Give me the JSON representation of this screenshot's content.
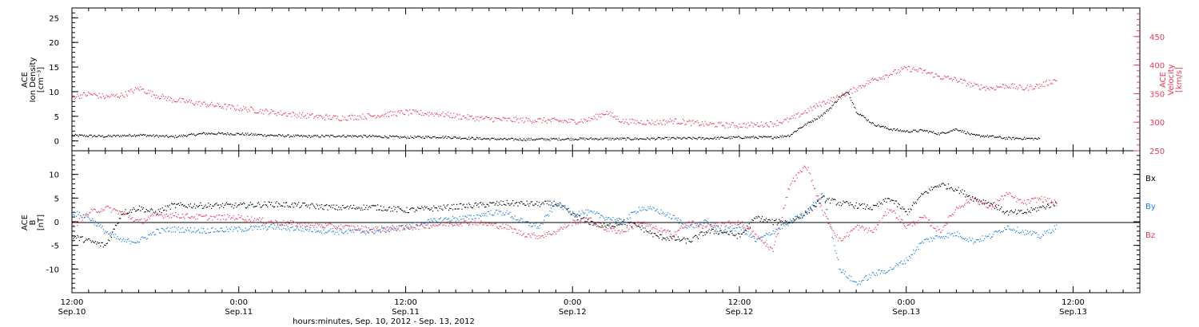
{
  "colors": {
    "black": "#000000",
    "red": "#e8385a",
    "blue": "#1f7fe0"
  },
  "chart_data": [
    {
      "type": "scatter",
      "panel": "top",
      "y_left_label": [
        "ACE",
        "Ion Density",
        "[cm⁻³]"
      ],
      "y_right_label": [
        "ACE",
        "Velocity",
        "[km/s]"
      ],
      "ylim_left": [
        -2,
        27
      ],
      "yticks_left": [
        "0",
        "5",
        "10",
        "15",
        "20",
        "25"
      ],
      "ylim_right": [
        250,
        500
      ],
      "yticks_right": [
        "250",
        "300",
        "350",
        "400",
        "450"
      ],
      "series": [
        {
          "color": "black",
          "points": [
            [
              0,
              1.2
            ],
            [
              4,
              1.0
            ],
            [
              8,
              1.3
            ],
            [
              12,
              0.9
            ],
            [
              16,
              1.6
            ],
            [
              20,
              1.5
            ],
            [
              24,
              1.2
            ],
            [
              28,
              1.0
            ],
            [
              32,
              1.1
            ],
            [
              36,
              1.0
            ],
            [
              40,
              0.8
            ],
            [
              44,
              0.9
            ],
            [
              48,
              0.6
            ],
            [
              52,
              0.4
            ],
            [
              56,
              0.4
            ],
            [
              60,
              0.5
            ],
            [
              64,
              0.5
            ],
            [
              68,
              0.5
            ],
            [
              72,
              0.6
            ],
            [
              76,
              0.6
            ],
            [
              80,
              0.8
            ],
            [
              84,
              0.8
            ],
            [
              86,
              1.2
            ],
            [
              87,
              2.5
            ],
            [
              88,
              3.5
            ],
            [
              89,
              4.5
            ],
            [
              90,
              5.5
            ],
            [
              91,
              7.0
            ],
            [
              92,
              9.0
            ],
            [
              93,
              10.0
            ],
            [
              94,
              6.0
            ],
            [
              96,
              3.5
            ],
            [
              98,
              2.5
            ],
            [
              100,
              2.0
            ],
            [
              102,
              2.2
            ],
            [
              104,
              1.5
            ],
            [
              106,
              2.5
            ],
            [
              108,
              1.2
            ],
            [
              110,
              1.0
            ],
            [
              112,
              0.6
            ],
            [
              114,
              0.6
            ],
            [
              116,
              0.5
            ]
          ]
        },
        {
          "color": "red",
          "points": [
            [
              0,
              345
            ],
            [
              2,
              350
            ],
            [
              4,
              345
            ],
            [
              6,
              348
            ],
            [
              8,
              360
            ],
            [
              10,
              348
            ],
            [
              12,
              340
            ],
            [
              16,
              332
            ],
            [
              20,
              325
            ],
            [
              24,
              318
            ],
            [
              28,
              312
            ],
            [
              32,
              308
            ],
            [
              36,
              312
            ],
            [
              40,
              318
            ],
            [
              44,
              315
            ],
            [
              48,
              308
            ],
            [
              52,
              305
            ],
            [
              56,
              304
            ],
            [
              60,
              302
            ],
            [
              62,
              305
            ],
            [
              64,
              318
            ],
            [
              66,
              302
            ],
            [
              70,
              300
            ],
            [
              72,
              303
            ],
            [
              76,
              297
            ],
            [
              80,
              295
            ],
            [
              84,
              298
            ],
            [
              86,
              305
            ],
            [
              88,
              320
            ],
            [
              90,
              335
            ],
            [
              92,
              345
            ],
            [
              94,
              360
            ],
            [
              96,
              375
            ],
            [
              98,
              385
            ],
            [
              100,
              395
            ],
            [
              102,
              390
            ],
            [
              104,
              380
            ],
            [
              106,
              375
            ],
            [
              108,
              365
            ],
            [
              110,
              360
            ],
            [
              112,
              365
            ],
            [
              114,
              360
            ],
            [
              116,
              365
            ],
            [
              118,
              375
            ]
          ]
        }
      ]
    },
    {
      "type": "scatter",
      "panel": "bottom",
      "y_left_label": [
        "ACE",
        "B",
        "[nT]"
      ],
      "ylim": [
        -15,
        15
      ],
      "yticks": [
        "-10",
        "-5",
        "0",
        "5",
        "10"
      ],
      "legend": [
        "Bx",
        "By",
        "Bz"
      ],
      "series": [
        {
          "name": "Bx",
          "color": "black",
          "points": [
            [
              0,
              -3
            ],
            [
              2,
              -4
            ],
            [
              4,
              -5
            ],
            [
              6,
              2
            ],
            [
              8,
              3
            ],
            [
              10,
              2
            ],
            [
              12,
              3.5
            ],
            [
              16,
              3.5
            ],
            [
              20,
              3.5
            ],
            [
              24,
              3.8
            ],
            [
              28,
              3.5
            ],
            [
              32,
              3
            ],
            [
              36,
              3.2
            ],
            [
              40,
              2.5
            ],
            [
              44,
              3
            ],
            [
              48,
              3.5
            ],
            [
              52,
              4
            ],
            [
              56,
              3.8
            ],
            [
              58,
              4
            ],
            [
              60,
              1.5
            ],
            [
              62,
              0
            ],
            [
              64,
              -1
            ],
            [
              66,
              0
            ],
            [
              68,
              -1
            ],
            [
              70,
              -3
            ],
            [
              72,
              -3.5
            ],
            [
              74,
              -4
            ],
            [
              76,
              -2
            ],
            [
              78,
              -2
            ],
            [
              80,
              -3
            ],
            [
              82,
              1
            ],
            [
              84,
              0
            ],
            [
              86,
              0
            ],
            [
              88,
              2
            ],
            [
              90,
              5
            ],
            [
              92,
              4
            ],
            [
              96,
              3
            ],
            [
              98,
              5
            ],
            [
              100,
              2
            ],
            [
              102,
              6
            ],
            [
              104,
              8
            ],
            [
              106,
              7
            ],
            [
              108,
              5
            ],
            [
              110,
              4
            ],
            [
              112,
              2
            ],
            [
              114,
              2
            ],
            [
              116,
              3
            ],
            [
              118,
              4
            ]
          ]
        },
        {
          "name": "By",
          "color": "blue",
          "points": [
            [
              0,
              2
            ],
            [
              2,
              1
            ],
            [
              4,
              -2
            ],
            [
              6,
              -4
            ],
            [
              8,
              -4
            ],
            [
              10,
              -2
            ],
            [
              12,
              -1.5
            ],
            [
              16,
              -1.8
            ],
            [
              20,
              -1.5
            ],
            [
              24,
              -1
            ],
            [
              28,
              -1.5
            ],
            [
              32,
              -2
            ],
            [
              36,
              -2
            ],
            [
              40,
              -1
            ],
            [
              44,
              0.5
            ],
            [
              48,
              1
            ],
            [
              50,
              2
            ],
            [
              52,
              2
            ],
            [
              54,
              0
            ],
            [
              56,
              -1
            ],
            [
              58,
              4
            ],
            [
              60,
              2
            ],
            [
              62,
              2
            ],
            [
              64,
              1
            ],
            [
              66,
              0
            ],
            [
              68,
              3
            ],
            [
              70,
              2.5
            ],
            [
              72,
              1
            ],
            [
              74,
              -1
            ],
            [
              76,
              0
            ],
            [
              78,
              -2
            ],
            [
              80,
              -1
            ],
            [
              82,
              -4
            ],
            [
              84,
              -2
            ],
            [
              86,
              0
            ],
            [
              88,
              2
            ],
            [
              90,
              6
            ],
            [
              92,
              -10
            ],
            [
              94,
              -13
            ],
            [
              96,
              -11
            ],
            [
              98,
              -10
            ],
            [
              100,
              -8
            ],
            [
              102,
              -4
            ],
            [
              104,
              -3
            ],
            [
              106,
              -2.5
            ],
            [
              108,
              -4
            ],
            [
              110,
              -3
            ],
            [
              112,
              -1
            ],
            [
              114,
              -2
            ],
            [
              116,
              -3
            ],
            [
              118,
              -1
            ]
          ]
        },
        {
          "name": "Bz",
          "color": "red",
          "points": [
            [
              0,
              -1
            ],
            [
              2,
              2
            ],
            [
              4,
              3
            ],
            [
              6,
              2
            ],
            [
              8,
              0
            ],
            [
              10,
              1.5
            ],
            [
              12,
              1.5
            ],
            [
              16,
              1
            ],
            [
              20,
              1
            ],
            [
              24,
              0
            ],
            [
              28,
              -0.5
            ],
            [
              32,
              -1
            ],
            [
              36,
              -1.5
            ],
            [
              40,
              -1.2
            ],
            [
              44,
              -0.5
            ],
            [
              48,
              0
            ],
            [
              52,
              -1
            ],
            [
              54,
              -2.5
            ],
            [
              56,
              -3
            ],
            [
              58,
              -2
            ],
            [
              60,
              0
            ],
            [
              62,
              0.5
            ],
            [
              64,
              -1.5
            ],
            [
              66,
              -2
            ],
            [
              68,
              0
            ],
            [
              70,
              -1.5
            ],
            [
              72,
              -2.5
            ],
            [
              74,
              0
            ],
            [
              76,
              -1
            ],
            [
              78,
              -0.5
            ],
            [
              80,
              0
            ],
            [
              82,
              -3
            ],
            [
              84,
              -6
            ],
            [
              86,
              8
            ],
            [
              88,
              12
            ],
            [
              90,
              2
            ],
            [
              92,
              -4
            ],
            [
              94,
              -1
            ],
            [
              96,
              -2
            ],
            [
              98,
              3
            ],
            [
              100,
              -1
            ],
            [
              102,
              1
            ],
            [
              104,
              -2
            ],
            [
              106,
              3
            ],
            [
              108,
              5
            ],
            [
              110,
              3
            ],
            [
              112,
              6
            ],
            [
              114,
              4
            ],
            [
              116,
              5
            ],
            [
              118,
              4
            ]
          ]
        }
      ]
    }
  ],
  "x_axis": {
    "title": "hours:minutes, Sep. 10, 2012 - Sep. 13, 2012",
    "xlim_hours": [
      0,
      128
    ],
    "ticks": [
      {
        "hour": 0,
        "time": "12:00",
        "date": "Sep.10"
      },
      {
        "hour": 20,
        "time": "0:00",
        "date": "Sep.11"
      },
      {
        "hour": 40,
        "time": "12:00",
        "date": "Sep.11"
      },
      {
        "hour": 60,
        "time": "0:00",
        "date": "Sep.12"
      },
      {
        "hour": 80,
        "time": "12:00",
        "date": "Sep.12"
      },
      {
        "hour": 100,
        "time": "0:00",
        "date": "Sep.13"
      },
      {
        "hour": 120,
        "time": "12:00",
        "date": "Sep.13"
      }
    ]
  }
}
